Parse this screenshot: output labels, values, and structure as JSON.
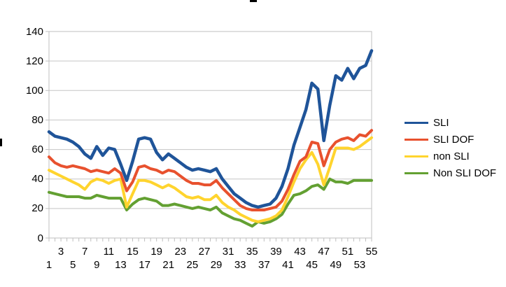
{
  "chart_data": {
    "type": "line",
    "x": [
      1,
      2,
      3,
      4,
      5,
      6,
      7,
      8,
      9,
      10,
      11,
      12,
      13,
      14,
      15,
      16,
      17,
      18,
      19,
      20,
      21,
      22,
      23,
      24,
      25,
      26,
      27,
      28,
      29,
      30,
      31,
      32,
      33,
      34,
      35,
      36,
      37,
      38,
      39,
      40,
      41,
      42,
      43,
      44,
      45,
      46,
      47,
      48,
      49,
      50,
      51,
      52,
      53,
      54,
      55
    ],
    "series": [
      {
        "name": "SLI",
        "color": "#1F5499",
        "values": [
          72,
          69,
          68,
          67,
          65,
          62,
          57,
          54,
          62,
          56,
          61,
          60,
          50,
          39,
          52,
          67,
          68,
          67,
          58,
          53,
          57,
          54,
          51,
          48,
          46,
          47,
          46,
          45,
          47,
          40,
          35,
          30,
          27,
          24,
          22,
          21,
          22,
          23,
          27,
          35,
          47,
          63,
          75,
          87,
          105,
          101,
          66,
          90,
          110,
          107,
          115,
          108,
          115,
          117,
          127
        ]
      },
      {
        "name": "SLI DOF",
        "color": "#E8512E",
        "values": [
          55,
          51,
          49,
          48,
          49,
          48,
          47,
          45,
          46,
          45,
          44,
          47,
          44,
          32,
          38,
          48,
          49,
          47,
          46,
          44,
          46,
          45,
          42,
          39,
          37,
          37,
          36,
          36,
          39,
          34,
          30,
          26,
          22,
          20,
          19,
          19,
          19,
          20,
          21,
          25,
          33,
          43,
          52,
          55,
          65,
          64,
          49,
          60,
          65,
          67,
          68,
          66,
          70,
          69,
          73
        ]
      },
      {
        "name": "non SLI",
        "color": "#FFD42E",
        "values": [
          46,
          44,
          42,
          40,
          38,
          36,
          33,
          38,
          40,
          39,
          37,
          39,
          40,
          21,
          30,
          39,
          39,
          38,
          36,
          34,
          36,
          34,
          31,
          28,
          27,
          28,
          26,
          26,
          29,
          24,
          21,
          19,
          16,
          14,
          12,
          11,
          12,
          13,
          15,
          19,
          28,
          38,
          47,
          53,
          58,
          50,
          36,
          48,
          61,
          61,
          61,
          60,
          62,
          65,
          68
        ]
      },
      {
        "name": "Non SLI DOF",
        "color": "#63A032",
        "values": [
          31,
          30,
          29,
          28,
          28,
          28,
          27,
          27,
          29,
          28,
          27,
          27,
          27,
          19,
          23,
          26,
          27,
          26,
          25,
          22,
          22,
          23,
          22,
          21,
          20,
          21,
          20,
          19,
          21,
          17,
          15,
          13,
          12,
          10,
          8,
          11,
          10,
          11,
          13,
          16,
          23,
          29,
          30,
          32,
          35,
          36,
          33,
          40,
          38,
          38,
          37,
          39,
          39,
          39,
          39
        ]
      }
    ],
    "ylim": [
      0,
      140
    ],
    "y_ticks": [
      0,
      20,
      40,
      60,
      80,
      100,
      120,
      140
    ],
    "x_tick_labels_top_row": [
      3,
      7,
      11,
      15,
      19,
      23,
      27,
      31,
      35,
      39,
      43,
      47,
      51,
      55
    ],
    "x_tick_labels_bottom_row": [
      1,
      5,
      9,
      13,
      17,
      21,
      25,
      29,
      33,
      37,
      41,
      45,
      49,
      53
    ],
    "grid": true,
    "legend_position": "right"
  },
  "legend": {
    "items": [
      "SLI",
      "SLI DOF",
      "non SLI",
      "Non SLI DOF"
    ]
  },
  "colors": {
    "gridline": "#C5C5C5",
    "axis": "#BFBFBF",
    "text": "#000000",
    "background": "#FFFFFF"
  }
}
